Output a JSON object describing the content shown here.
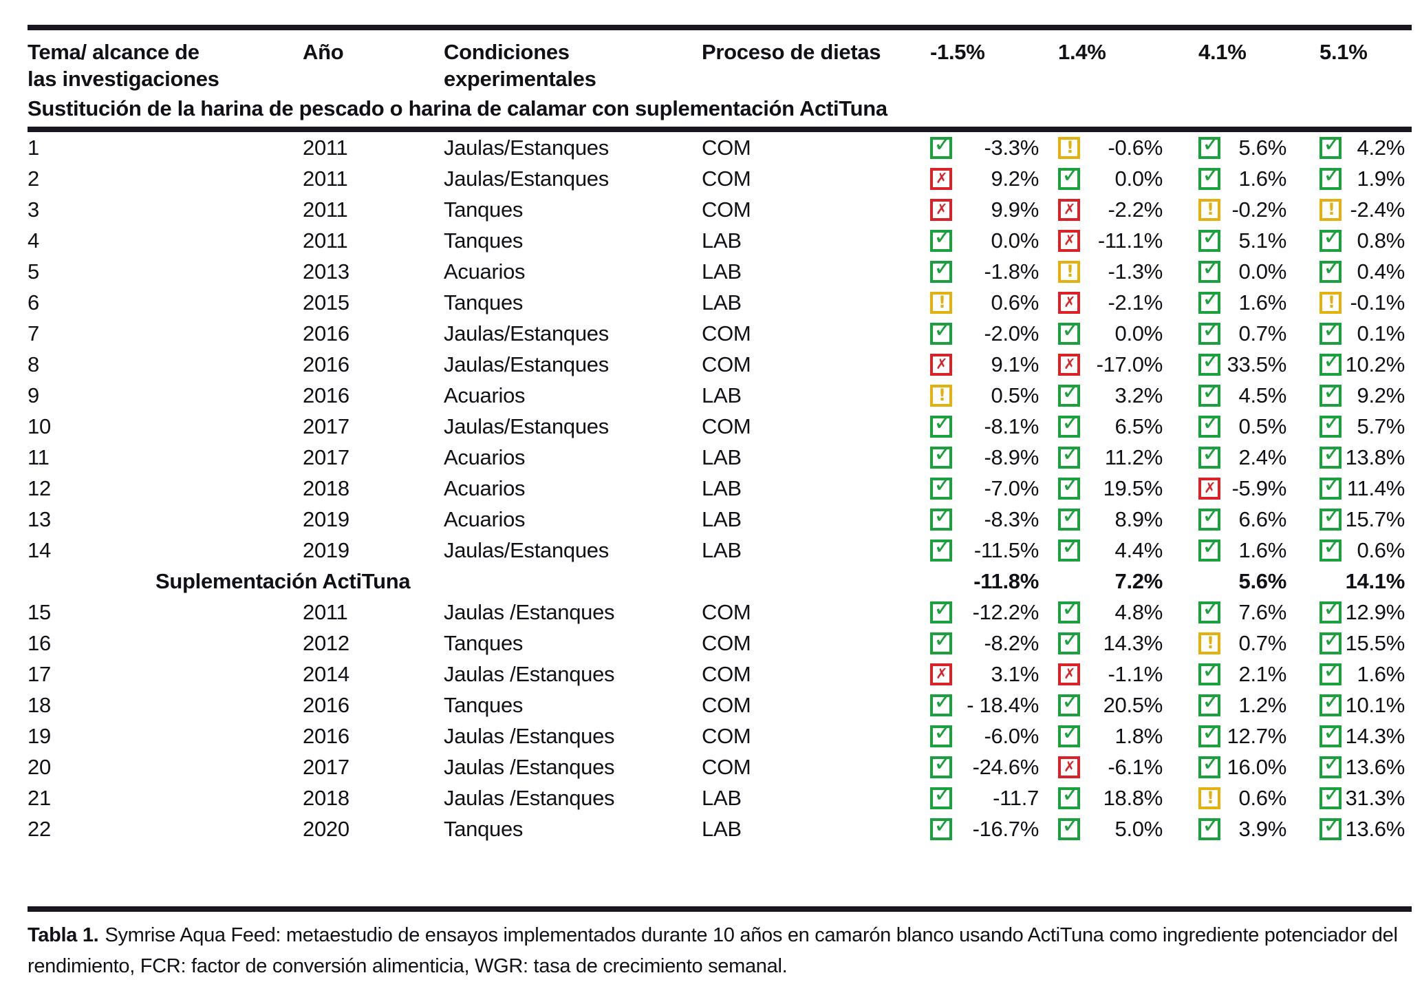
{
  "table": {
    "columns": [
      "Tema/ alcance de\nlas investigaciones",
      "Año",
      "Condiciones\nexperimentales",
      "Proceso de dietas",
      "-1.5%",
      "1.4%",
      "4.1%",
      "5.1%"
    ],
    "section_title": "Sustitución de la harina de pescado o harina de calamar con suplementación ActiTuna",
    "rows": [
      {
        "n": "1",
        "year": "2011",
        "cond": "Jaulas/Estanques",
        "proc": "COM",
        "cells": [
          {
            "s": "ok",
            "v": "-3.3%"
          },
          {
            "s": "warn",
            "v": "-0.6%"
          },
          {
            "s": "ok",
            "v": "5.6%"
          },
          {
            "s": "ok",
            "v": "4.2%"
          }
        ]
      },
      {
        "n": "2",
        "year": "2011",
        "cond": "Jaulas/Estanques",
        "proc": "COM",
        "cells": [
          {
            "s": "fail",
            "v": "9.2%"
          },
          {
            "s": "ok",
            "v": "0.0%"
          },
          {
            "s": "ok",
            "v": "1.6%"
          },
          {
            "s": "ok",
            "v": "1.9%"
          }
        ]
      },
      {
        "n": "3",
        "year": "2011",
        "cond": "Tanques",
        "proc": "COM",
        "cells": [
          {
            "s": "fail",
            "v": "9.9%"
          },
          {
            "s": "fail",
            "v": "-2.2%"
          },
          {
            "s": "warn",
            "v": "-0.2%"
          },
          {
            "s": "warn",
            "v": "-2.4%"
          }
        ]
      },
      {
        "n": "4",
        "year": "2011",
        "cond": "Tanques",
        "proc": "LAB",
        "cells": [
          {
            "s": "ok",
            "v": "0.0%"
          },
          {
            "s": "fail",
            "v": "-11.1%"
          },
          {
            "s": "ok",
            "v": "5.1%"
          },
          {
            "s": "ok",
            "v": "0.8%"
          }
        ]
      },
      {
        "n": "5",
        "year": "2013",
        "cond": "Acuarios",
        "proc": "LAB",
        "cells": [
          {
            "s": "ok",
            "v": "-1.8%"
          },
          {
            "s": "warn",
            "v": "-1.3%"
          },
          {
            "s": "ok",
            "v": "0.0%"
          },
          {
            "s": "ok",
            "v": "0.4%"
          }
        ]
      },
      {
        "n": "6",
        "year": "2015",
        "cond": "Tanques",
        "proc": "LAB",
        "cells": [
          {
            "s": "warn",
            "v": "0.6%"
          },
          {
            "s": "fail",
            "v": "-2.1%"
          },
          {
            "s": "ok",
            "v": "1.6%"
          },
          {
            "s": "warn",
            "v": "-0.1%"
          }
        ]
      },
      {
        "n": "7",
        "year": "2016",
        "cond": "Jaulas/Estanques",
        "proc": "COM",
        "cells": [
          {
            "s": "ok",
            "v": "-2.0%"
          },
          {
            "s": "ok",
            "v": "0.0%"
          },
          {
            "s": "ok",
            "v": "0.7%"
          },
          {
            "s": "ok",
            "v": "0.1%"
          }
        ]
      },
      {
        "n": "8",
        "year": "2016",
        "cond": "Jaulas/Estanques",
        "proc": "COM",
        "cells": [
          {
            "s": "fail",
            "v": "9.1%"
          },
          {
            "s": "fail",
            "v": "-17.0%"
          },
          {
            "s": "ok",
            "v": "33.5%"
          },
          {
            "s": "ok",
            "v": "10.2%"
          }
        ]
      },
      {
        "n": "9",
        "year": "2016",
        "cond": "Acuarios",
        "proc": "LAB",
        "cells": [
          {
            "s": "warn",
            "v": "0.5%"
          },
          {
            "s": "ok",
            "v": "3.2%"
          },
          {
            "s": "ok",
            "v": "4.5%"
          },
          {
            "s": "ok",
            "v": "9.2%"
          }
        ]
      },
      {
        "n": "10",
        "year": "2017",
        "cond": "Jaulas/Estanques",
        "proc": "COM",
        "cells": [
          {
            "s": "ok",
            "v": "-8.1%"
          },
          {
            "s": "ok",
            "v": "6.5%"
          },
          {
            "s": "ok",
            "v": "0.5%"
          },
          {
            "s": "ok",
            "v": "5.7%"
          }
        ]
      },
      {
        "n": "11",
        "year": "2017",
        "cond": "Acuarios",
        "proc": "LAB",
        "cells": [
          {
            "s": "ok",
            "v": "-8.9%"
          },
          {
            "s": "ok",
            "v": "11.2%"
          },
          {
            "s": "ok",
            "v": "2.4%"
          },
          {
            "s": "ok",
            "v": "13.8%"
          }
        ]
      },
      {
        "n": "12",
        "year": "2018",
        "cond": "Acuarios",
        "proc": "LAB",
        "cells": [
          {
            "s": "ok",
            "v": "-7.0%"
          },
          {
            "s": "ok",
            "v": "19.5%"
          },
          {
            "s": "fail",
            "v": "-5.9%"
          },
          {
            "s": "ok",
            "v": "11.4%"
          }
        ]
      },
      {
        "n": "13",
        "year": "2019",
        "cond": "Acuarios",
        "proc": "LAB",
        "cells": [
          {
            "s": "ok",
            "v": "-8.3%"
          },
          {
            "s": "ok",
            "v": "8.9%"
          },
          {
            "s": "ok",
            "v": "6.6%"
          },
          {
            "s": "ok",
            "v": "15.7%"
          }
        ]
      },
      {
        "n": "14",
        "year": "2019",
        "cond": "Jaulas/Estanques",
        "proc": "LAB",
        "cells": [
          {
            "s": "ok",
            "v": "-11.5%"
          },
          {
            "s": "ok",
            "v": "4.4%"
          },
          {
            "s": "ok",
            "v": "1.6%"
          },
          {
            "s": "ok",
            "v": "0.6%"
          }
        ]
      },
      {
        "subtotal": true,
        "label": "Suplementación ActiTuna",
        "values": [
          "-11.8%",
          "7.2%",
          "5.6%",
          "14.1%"
        ]
      },
      {
        "n": "15",
        "year": "2011",
        "cond": "Jaulas /Estanques",
        "proc": "COM",
        "cells": [
          {
            "s": "ok",
            "v": "-12.2%"
          },
          {
            "s": "ok",
            "v": "4.8%"
          },
          {
            "s": "ok",
            "v": "7.6%"
          },
          {
            "s": "ok",
            "v": "12.9%"
          }
        ]
      },
      {
        "n": "16",
        "year": "2012",
        "cond": "Tanques",
        "proc": "COM",
        "cells": [
          {
            "s": "ok",
            "v": "-8.2%"
          },
          {
            "s": "ok",
            "v": "14.3%"
          },
          {
            "s": "warn",
            "v": "0.7%"
          },
          {
            "s": "ok",
            "v": "15.5%"
          }
        ]
      },
      {
        "n": "17",
        "year": "2014",
        "cond": "Jaulas /Estanques",
        "proc": "COM",
        "cells": [
          {
            "s": "fail",
            "v": "3.1%"
          },
          {
            "s": "fail",
            "v": "-1.1%"
          },
          {
            "s": "ok",
            "v": "2.1%"
          },
          {
            "s": "ok",
            "v": "1.6%"
          }
        ]
      },
      {
        "n": "18",
        "year": "2016",
        "cond": "Tanques",
        "proc": "COM",
        "cells": [
          {
            "s": "ok",
            "v": "- 18.4%"
          },
          {
            "s": "ok",
            "v": "20.5%"
          },
          {
            "s": "ok",
            "v": "1.2%"
          },
          {
            "s": "ok",
            "v": "10.1%"
          }
        ]
      },
      {
        "n": "19",
        "year": "2016",
        "cond": "Jaulas /Estanques",
        "proc": "COM",
        "cells": [
          {
            "s": "ok",
            "v": "-6.0%"
          },
          {
            "s": "ok",
            "v": "1.8%"
          },
          {
            "s": "ok",
            "v": "12.7%"
          },
          {
            "s": "ok",
            "v": "14.3%"
          }
        ]
      },
      {
        "n": "20",
        "year": "2017",
        "cond": "Jaulas /Estanques",
        "proc": "COM",
        "cells": [
          {
            "s": "ok",
            "v": "-24.6%"
          },
          {
            "s": "fail",
            "v": "-6.1%"
          },
          {
            "s": "ok",
            "v": "16.0%"
          },
          {
            "s": "ok",
            "v": "13.6%"
          }
        ]
      },
      {
        "n": "21",
        "year": "2018",
        "cond": "Jaulas /Estanques",
        "proc": "LAB",
        "cells": [
          {
            "s": "ok",
            "v": "-11.7"
          },
          {
            "s": "ok",
            "v": "18.8%"
          },
          {
            "s": "warn",
            "v": "0.6%"
          },
          {
            "s": "ok",
            "v": "31.3%"
          }
        ]
      },
      {
        "n": "22",
        "year": "2020",
        "cond": "Tanques",
        "proc": "LAB",
        "cells": [
          {
            "s": "ok",
            "v": "-16.7%"
          },
          {
            "s": "ok",
            "v": "5.0%"
          },
          {
            "s": "ok",
            "v": "3.9%"
          },
          {
            "s": "ok",
            "v": "13.6%"
          }
        ]
      }
    ]
  },
  "status_icons": {
    "ok": {
      "name": "check-icon",
      "glyph": "✓",
      "color": "#1aa03c"
    },
    "fail": {
      "name": "x-icon",
      "glyph": "✗",
      "color": "#da2128"
    },
    "warn": {
      "name": "warning-icon",
      "glyph": "!",
      "color": "#e3b00e"
    }
  },
  "caption": {
    "label": "Tabla 1.",
    "text": "Symrise Aqua Feed: metaestudio de ensayos implementados durante 10 años en camarón blanco usando ActiTuna como ingrediente potenciador del rendimiento, FCR: factor de conversión alimenticia, WGR: tasa de crecimiento semanal."
  }
}
